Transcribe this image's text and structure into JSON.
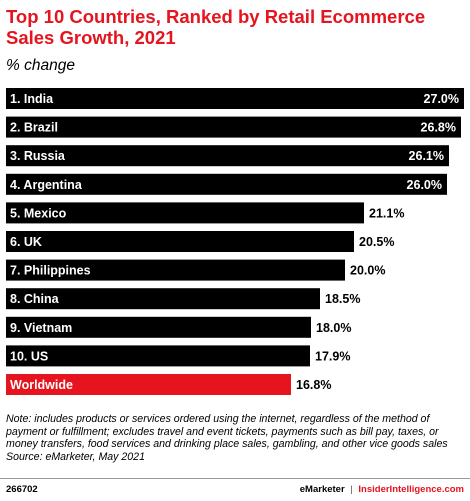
{
  "header": {
    "title": "Top 10 Countries, Ranked by Retail Ecommerce Sales Growth, 2021",
    "subtitle": "% change"
  },
  "chart_data": {
    "type": "bar",
    "orientation": "horizontal",
    "categories": [
      "1. India",
      "2. Brazil",
      "3. Russia",
      "4. Argentina",
      "5. Mexico",
      "6. UK",
      "7. Philippines",
      "8. China",
      "9. Vietnam",
      "10. US",
      "Worldwide"
    ],
    "values": [
      27.0,
      26.8,
      26.1,
      26.0,
      21.1,
      20.5,
      20.0,
      18.5,
      18.0,
      17.9,
      16.8
    ],
    "value_labels": [
      "27.0%",
      "26.8%",
      "26.1%",
      "26.0%",
      "21.1%",
      "20.5%",
      "20.0%",
      "18.5%",
      "18.0%",
      "17.9%",
      "16.8%"
    ],
    "colors": [
      "#000000",
      "#000000",
      "#000000",
      "#000000",
      "#000000",
      "#000000",
      "#000000",
      "#000000",
      "#000000",
      "#000000",
      "#e5141f"
    ],
    "xlim": [
      0,
      27.0
    ],
    "grid": false,
    "legend": "none"
  },
  "notes": {
    "note": "Note: includes products or services ordered using the internet, regardless of the method of payment or fulfillment; excludes travel and event tickets, payments such as bill pay, taxes, or money transfers, food services and drinking place sales, gambling, and other vice goods sales",
    "source": "Source: eMarketer, May 2021"
  },
  "footer": {
    "chart_id": "266702",
    "brand": "eMarketer",
    "separator": "|",
    "site": "InsiderIntelligence.com"
  },
  "colors": {
    "accent": "#e5141f",
    "bar": "#000000",
    "text_on_bar": "#ffffff"
  }
}
